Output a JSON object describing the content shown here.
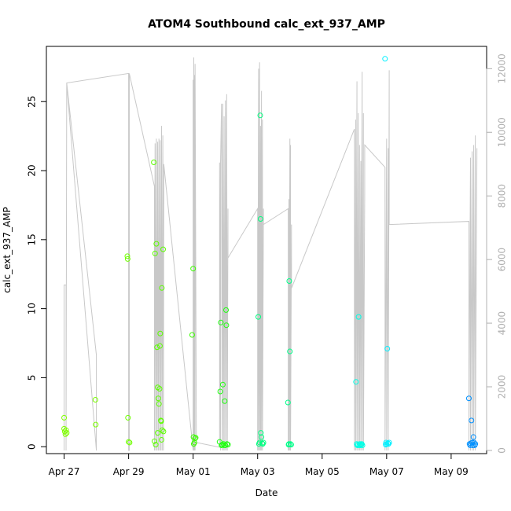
{
  "chart_data": {
    "type": "scatter",
    "title": "ATOM4 Southbound calc_ext_937_AMP",
    "xlabel": "Date",
    "ylabel": "calc_ext_937_AMP",
    "x_ticks": [
      "Apr 27",
      "Apr 29",
      "May 01",
      "May 03",
      "May 05",
      "May 07",
      "May 09"
    ],
    "xlim_days": [
      -0.55,
      13.1
    ],
    "ylim": [
      -0.5,
      29
    ],
    "y_ticks": [
      0,
      5,
      10,
      15,
      20,
      25
    ],
    "y2lim": [
      -100,
      12700
    ],
    "y2_ticks": [
      0,
      2000,
      4000,
      6000,
      8000,
      10000,
      12000
    ],
    "grid": false,
    "series": [
      {
        "color": "multi",
        "points": [
          {
            "x": 0.0,
            "y": 2.1,
            "color": "#80ff00"
          },
          {
            "x": 0.0,
            "y": 1.3,
            "color": "#80ff00"
          },
          {
            "x": 0.02,
            "y": 1.1,
            "color": "#80ff00"
          },
          {
            "x": 0.04,
            "y": 0.9,
            "color": "#80ff00"
          },
          {
            "x": 0.06,
            "y": 1.2,
            "color": "#80ff00"
          },
          {
            "x": 0.08,
            "y": 1.0,
            "color": "#80ff00"
          },
          {
            "x": 0.97,
            "y": 3.4,
            "color": "#7aff00"
          },
          {
            "x": 0.98,
            "y": 1.6,
            "color": "#7aff00"
          },
          {
            "x": 1.96,
            "y": 13.8,
            "color": "#6fff00"
          },
          {
            "x": 1.97,
            "y": 13.6,
            "color": "#6fff00"
          },
          {
            "x": 1.98,
            "y": 2.1,
            "color": "#6fff00"
          },
          {
            "x": 2.0,
            "y": 0.35,
            "color": "#6fff00"
          },
          {
            "x": 2.03,
            "y": 0.3,
            "color": "#6fff00"
          },
          {
            "x": 2.78,
            "y": 20.6,
            "color": "#5cff00"
          },
          {
            "x": 2.8,
            "y": 0.4,
            "color": "#5cff00"
          },
          {
            "x": 2.82,
            "y": 14.0,
            "color": "#5cff00"
          },
          {
            "x": 2.84,
            "y": 0.15,
            "color": "#5cff00"
          },
          {
            "x": 2.86,
            "y": 14.7,
            "color": "#5cff00"
          },
          {
            "x": 2.88,
            "y": 7.2,
            "color": "#5cff00"
          },
          {
            "x": 2.9,
            "y": 4.3,
            "color": "#5cff00"
          },
          {
            "x": 2.9,
            "y": 1.0,
            "color": "#5cff00"
          },
          {
            "x": 2.92,
            "y": 3.5,
            "color": "#5cff00"
          },
          {
            "x": 2.94,
            "y": 3.1,
            "color": "#5cff00"
          },
          {
            "x": 2.96,
            "y": 4.2,
            "color": "#5cff00"
          },
          {
            "x": 2.97,
            "y": 7.3,
            "color": "#5cff00"
          },
          {
            "x": 2.98,
            "y": 8.2,
            "color": "#5cff00"
          },
          {
            "x": 3.0,
            "y": 1.9,
            "color": "#5cff00"
          },
          {
            "x": 3.01,
            "y": 1.85,
            "color": "#5cff00"
          },
          {
            "x": 3.02,
            "y": 0.5,
            "color": "#5cff00"
          },
          {
            "x": 3.03,
            "y": 11.5,
            "color": "#5cff00"
          },
          {
            "x": 3.04,
            "y": 1.2,
            "color": "#5cff00"
          },
          {
            "x": 3.07,
            "y": 14.3,
            "color": "#5cff00"
          },
          {
            "x": 3.08,
            "y": 1.1,
            "color": "#5cff00"
          },
          {
            "x": 3.97,
            "y": 8.1,
            "color": "#3cff00"
          },
          {
            "x": 4.0,
            "y": 12.9,
            "color": "#3cff00"
          },
          {
            "x": 4.01,
            "y": 0.7,
            "color": "#3cff00"
          },
          {
            "x": 4.02,
            "y": 0.2,
            "color": "#3cff00"
          },
          {
            "x": 4.04,
            "y": 0.3,
            "color": "#3cff00"
          },
          {
            "x": 4.06,
            "y": 0.6,
            "color": "#3cff00"
          },
          {
            "x": 4.08,
            "y": 0.65,
            "color": "#3cff00"
          },
          {
            "x": 4.82,
            "y": 0.35,
            "color": "#1fff10"
          },
          {
            "x": 4.84,
            "y": 4.0,
            "color": "#1fff10"
          },
          {
            "x": 4.86,
            "y": 9.0,
            "color": "#1fff10"
          },
          {
            "x": 4.88,
            "y": 0.1,
            "color": "#1fff10"
          },
          {
            "x": 4.9,
            "y": 0.15,
            "color": "#1fff10"
          },
          {
            "x": 4.92,
            "y": 4.5,
            "color": "#1fff10"
          },
          {
            "x": 4.94,
            "y": 0.2,
            "color": "#1fff10"
          },
          {
            "x": 4.96,
            "y": 0.1,
            "color": "#1fff10"
          },
          {
            "x": 4.98,
            "y": 3.3,
            "color": "#1fff10"
          },
          {
            "x": 5.0,
            "y": 0.1,
            "color": "#1fff10"
          },
          {
            "x": 5.02,
            "y": 9.9,
            "color": "#1fff10"
          },
          {
            "x": 5.03,
            "y": 8.8,
            "color": "#1fff10"
          },
          {
            "x": 5.05,
            "y": 0.2,
            "color": "#1fff10"
          },
          {
            "x": 5.08,
            "y": 0.15,
            "color": "#1fff10"
          },
          {
            "x": 6.02,
            "y": 9.4,
            "color": "#00ff80"
          },
          {
            "x": 6.04,
            "y": 0.2,
            "color": "#00ff80"
          },
          {
            "x": 6.06,
            "y": 0.3,
            "color": "#00ff80"
          },
          {
            "x": 6.08,
            "y": 24.0,
            "color": "#00ff80"
          },
          {
            "x": 6.09,
            "y": 16.5,
            "color": "#00ff80"
          },
          {
            "x": 6.1,
            "y": 1.0,
            "color": "#00ff80"
          },
          {
            "x": 6.12,
            "y": 0.7,
            "color": "#00ff80"
          },
          {
            "x": 6.14,
            "y": 0.25,
            "color": "#00ff80"
          },
          {
            "x": 6.16,
            "y": 0.2,
            "color": "#00ff80"
          },
          {
            "x": 6.18,
            "y": 0.3,
            "color": "#00ff80"
          },
          {
            "x": 6.94,
            "y": 3.2,
            "color": "#00ff8a"
          },
          {
            "x": 6.96,
            "y": 0.15,
            "color": "#00ff8a"
          },
          {
            "x": 6.97,
            "y": 0.2,
            "color": "#00ff8a"
          },
          {
            "x": 6.98,
            "y": 12.0,
            "color": "#00ff8a"
          },
          {
            "x": 7.0,
            "y": 6.9,
            "color": "#00ff8a"
          },
          {
            "x": 7.02,
            "y": 0.2,
            "color": "#00ff8a"
          },
          {
            "x": 7.04,
            "y": 0.15,
            "color": "#00ff8a"
          },
          {
            "x": 9.05,
            "y": 4.7,
            "color": "#00ffe6"
          },
          {
            "x": 9.07,
            "y": 0.2,
            "color": "#00ffe6"
          },
          {
            "x": 9.09,
            "y": 0.1,
            "color": "#00ffe6"
          },
          {
            "x": 9.11,
            "y": 0.15,
            "color": "#00ffe6"
          },
          {
            "x": 9.13,
            "y": 9.4,
            "color": "#00ffe6"
          },
          {
            "x": 9.15,
            "y": 0.1,
            "color": "#00ffe6"
          },
          {
            "x": 9.17,
            "y": 0.2,
            "color": "#00ffe6"
          },
          {
            "x": 9.19,
            "y": 0.1,
            "color": "#00ffe6"
          },
          {
            "x": 9.21,
            "y": 0.15,
            "color": "#00ffe6"
          },
          {
            "x": 9.23,
            "y": 0.2,
            "color": "#00ffe6"
          },
          {
            "x": 9.25,
            "y": 0.1,
            "color": "#00ffe6"
          },
          {
            "x": 9.95,
            "y": 28.1,
            "color": "#00f0ff"
          },
          {
            "x": 9.97,
            "y": 0.15,
            "color": "#00f0ff"
          },
          {
            "x": 9.98,
            "y": 0.3,
            "color": "#00f0ff"
          },
          {
            "x": 10.0,
            "y": 0.2,
            "color": "#00f0ff"
          },
          {
            "x": 10.02,
            "y": 7.1,
            "color": "#00f0ff"
          },
          {
            "x": 10.04,
            "y": 0.25,
            "color": "#00f0ff"
          },
          {
            "x": 10.06,
            "y": 0.2,
            "color": "#00f0ff"
          },
          {
            "x": 10.08,
            "y": 0.3,
            "color": "#00f0ff"
          },
          {
            "x": 12.55,
            "y": 3.5,
            "color": "#0090ff"
          },
          {
            "x": 12.57,
            "y": 0.2,
            "color": "#0090ff"
          },
          {
            "x": 12.59,
            "y": 0.1,
            "color": "#0090ff"
          },
          {
            "x": 12.61,
            "y": 0.25,
            "color": "#0090ff"
          },
          {
            "x": 12.63,
            "y": 1.9,
            "color": "#0090ff"
          },
          {
            "x": 12.65,
            "y": 0.3,
            "color": "#0090ff"
          },
          {
            "x": 12.67,
            "y": 0.1,
            "color": "#0090ff"
          },
          {
            "x": 12.69,
            "y": 0.7,
            "color": "#0090ff"
          },
          {
            "x": 12.71,
            "y": 0.3,
            "color": "#0090ff"
          },
          {
            "x": 12.73,
            "y": 0.1,
            "color": "#0090ff"
          },
          {
            "x": 12.75,
            "y": 0.2,
            "color": "#0090ff"
          }
        ]
      },
      {
        "axis": "right",
        "color": "#c8c8c8",
        "type": "line",
        "x": [
          0.0,
          0.0,
          0.06,
          0.06,
          0.08,
          1.0,
          1.0,
          0.08,
          0.08,
          2.0,
          2.0,
          2.02,
          2.02,
          2.8,
          2.8,
          2.82,
          2.84,
          2.86,
          2.88,
          2.9,
          2.92,
          2.94,
          2.96,
          2.98,
          3.0,
          3.02,
          3.04,
          3.06,
          3.08,
          3.09,
          4.0,
          4.0,
          4.02,
          4.02,
          4.04,
          4.04,
          4.06,
          4.06,
          4.1,
          4.82,
          4.82,
          4.85,
          4.85,
          4.88,
          4.9,
          4.92,
          4.94,
          4.96,
          4.98,
          5.0,
          5.02,
          5.04,
          5.06,
          5.08,
          5.08,
          6.0,
          6.0,
          6.03,
          6.03,
          6.06,
          6.06,
          6.09,
          6.09,
          6.12,
          6.12,
          6.15,
          6.15,
          6.18,
          6.18,
          6.95,
          6.95,
          6.97,
          6.97,
          7.0,
          7.0,
          7.02,
          7.02,
          7.05,
          7.05,
          9.0,
          9.0,
          9.04,
          9.04,
          9.08,
          9.08,
          9.12,
          9.12,
          9.16,
          9.16,
          9.2,
          9.2,
          9.24,
          9.24,
          9.28,
          9.28,
          9.32,
          9.32,
          9.95,
          9.95,
          10.0,
          10.0,
          10.05,
          10.05,
          10.08,
          10.08,
          12.55,
          12.55,
          12.6,
          12.6,
          12.65,
          12.65,
          12.7,
          12.7,
          12.75,
          12.75,
          12.8
        ],
        "y": [
          0,
          5200,
          5200,
          0,
          11550,
          3000,
          0,
          11550,
          11550,
          11850,
          0,
          0,
          11850,
          8300,
          0,
          9650,
          0,
          9800,
          0,
          9700,
          0,
          9800,
          0,
          9750,
          0,
          10200,
          0,
          9900,
          0,
          9000,
          0,
          11650,
          0,
          12350,
          0,
          11800,
          0,
          12150,
          250,
          100,
          9050,
          0,
          9050,
          10900,
          0,
          10900,
          0,
          10500,
          0,
          11000,
          0,
          11200,
          0,
          7600,
          6050,
          7600,
          0,
          12000,
          0,
          12200,
          0,
          10200,
          0,
          11300,
          0,
          10400,
          0,
          7600,
          7100,
          7600,
          0,
          7900,
          0,
          9800,
          0,
          9600,
          0,
          7100,
          5100,
          10100,
          0,
          10400,
          0,
          11600,
          0,
          10600,
          0,
          9600,
          0,
          9100,
          0,
          11900,
          0,
          10600,
          0,
          8100,
          9600,
          8900,
          0,
          9800,
          0,
          9500,
          0,
          11950,
          7100,
          7200,
          0,
          9200,
          0,
          9400,
          0,
          9600,
          0,
          9900,
          0,
          9500
        ]
      }
    ]
  }
}
